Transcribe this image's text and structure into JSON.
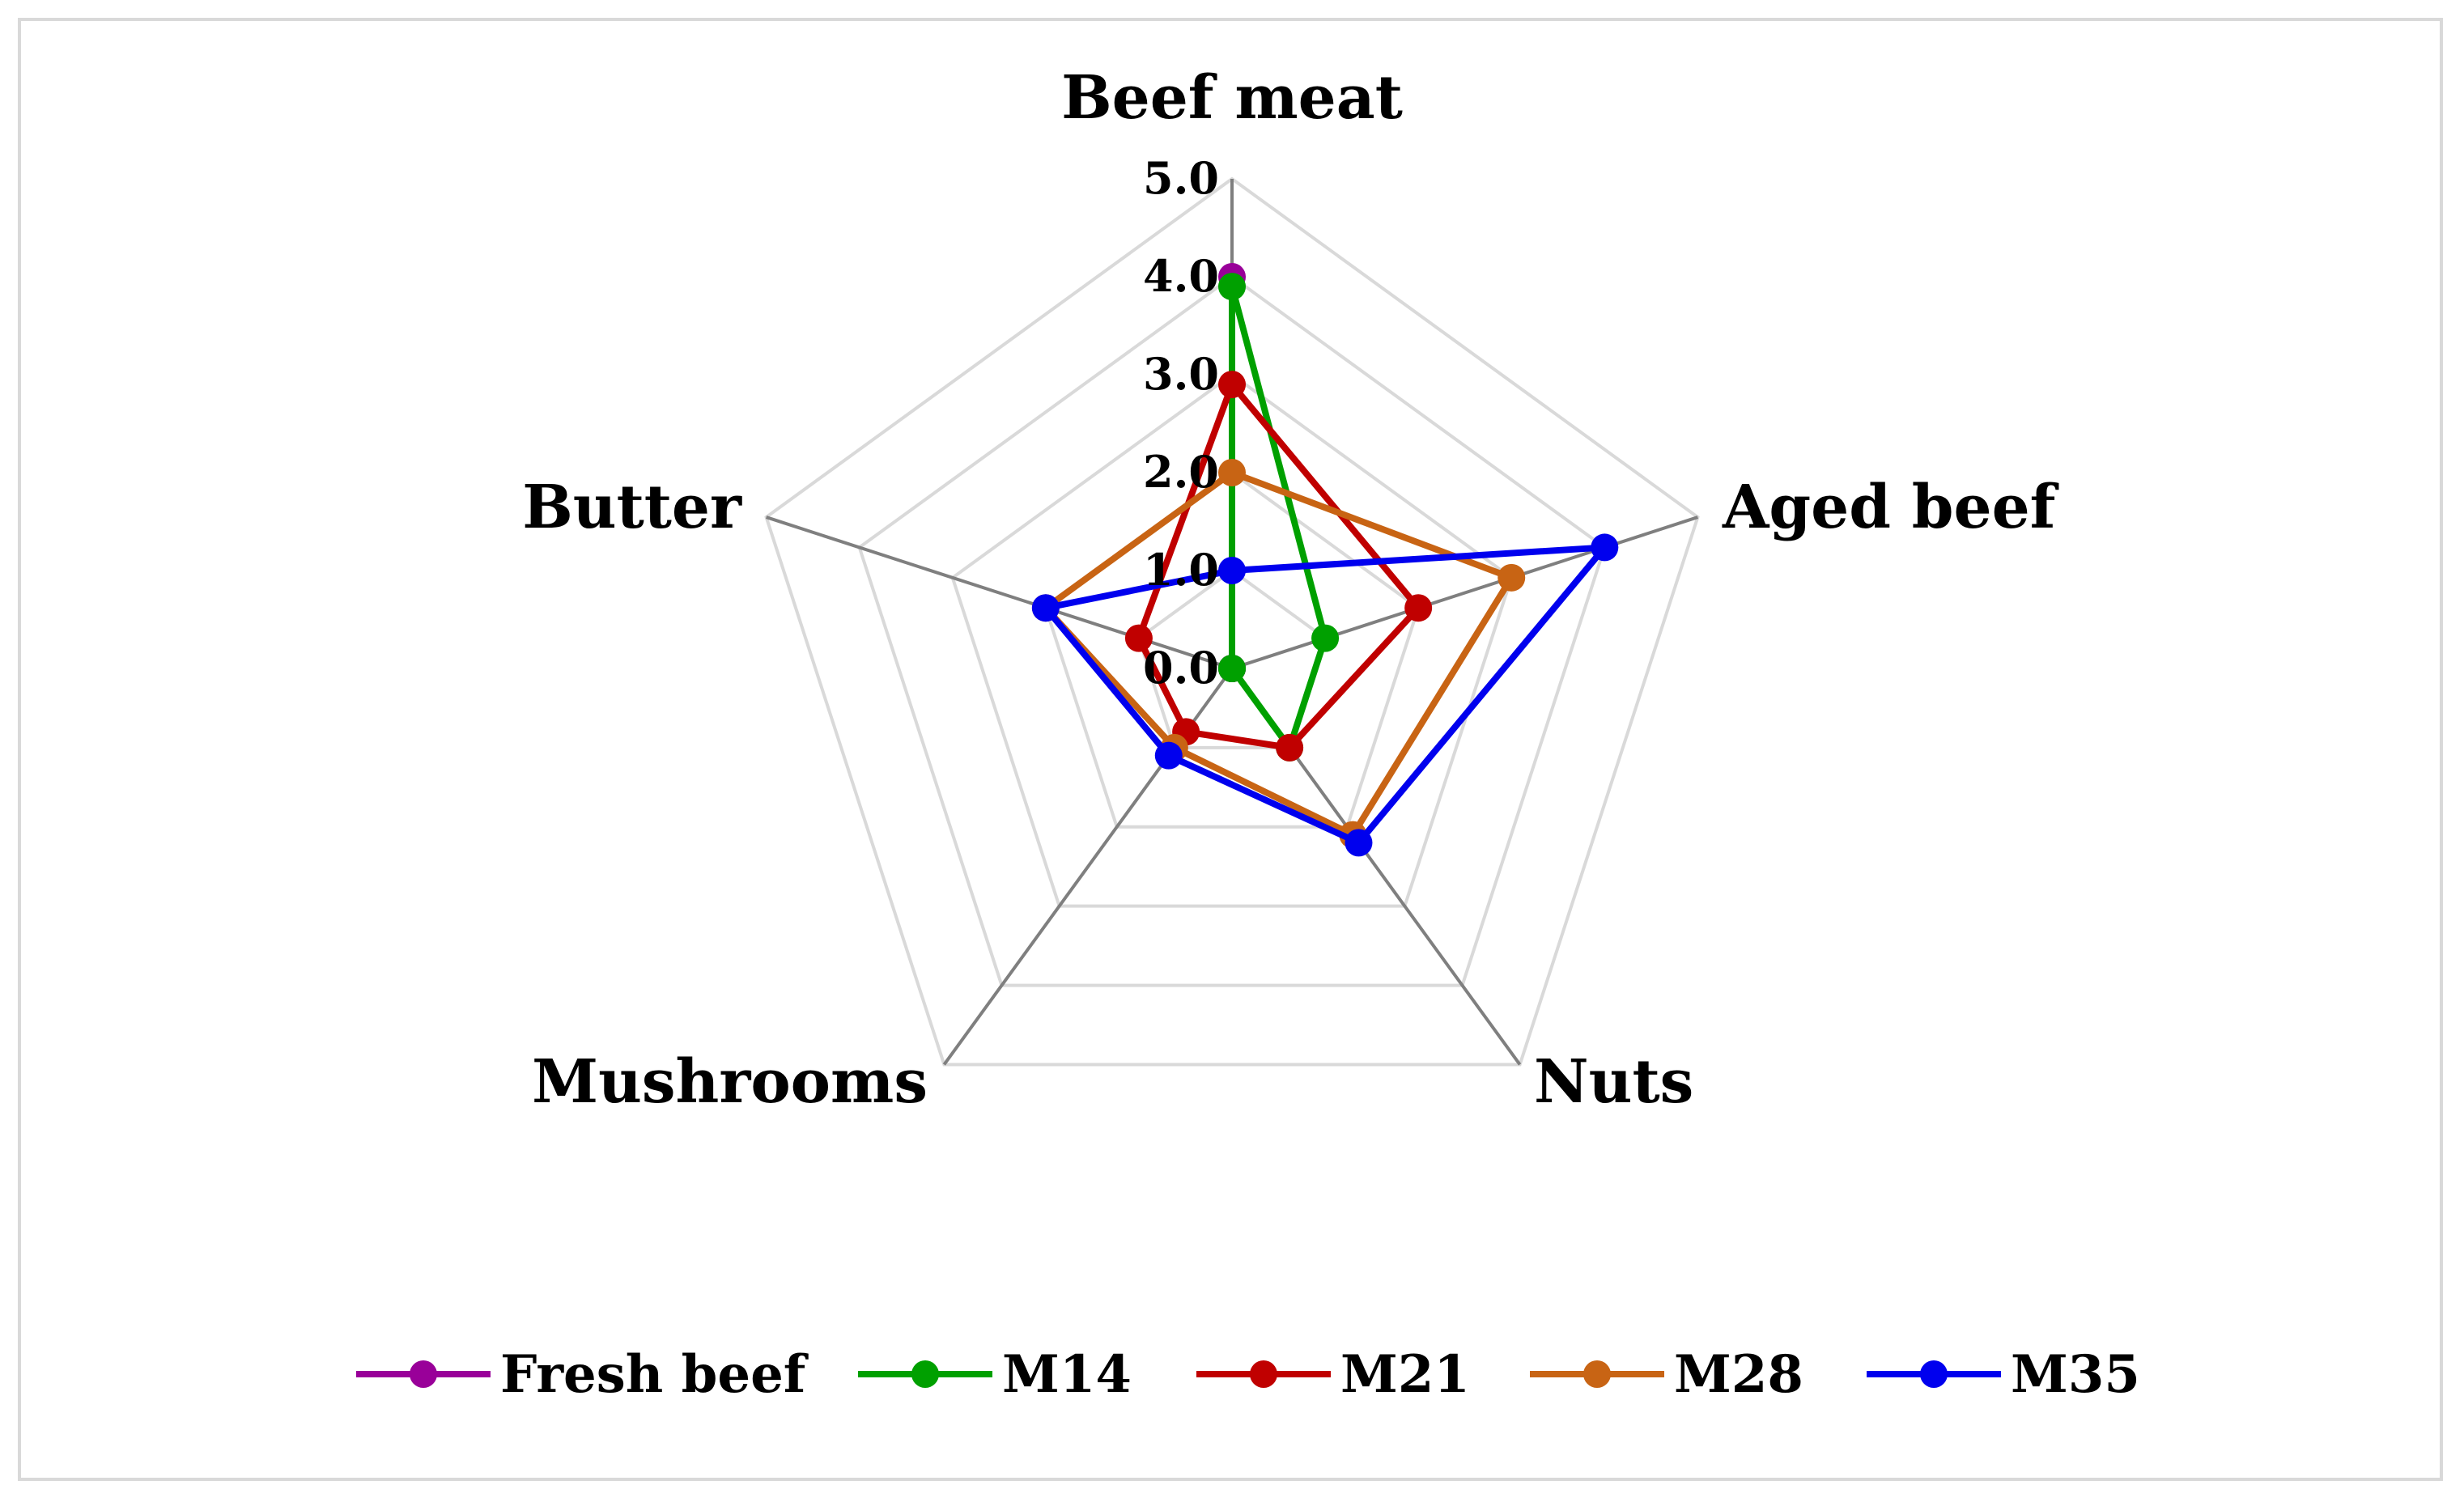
{
  "chart_data": {
    "type": "radar",
    "categories": [
      "Beef meat",
      "Aged beef",
      "Nuts",
      "Mushrooms",
      "Butter"
    ],
    "rlim": [
      0,
      5
    ],
    "ticks": [
      "0.0",
      "1.0",
      "2.0",
      "3.0",
      "4.0",
      "5.0"
    ],
    "grid": true,
    "legend_position": "bottom",
    "series": [
      {
        "name": "Fresh beef",
        "color": "#990099",
        "values": [
          4.0,
          0.0,
          0.0,
          0.0,
          0.0
        ]
      },
      {
        "name": "M14",
        "color": "#00a000",
        "values": [
          3.9,
          1.0,
          1.0,
          0.0,
          0.0
        ]
      },
      {
        "name": "M21",
        "color": "#c00000",
        "values": [
          2.9,
          2.0,
          1.0,
          0.8,
          1.0
        ]
      },
      {
        "name": "M28",
        "color": "#c86414",
        "values": [
          2.0,
          3.0,
          2.1,
          1.0,
          2.0
        ]
      },
      {
        "name": "M35",
        "color": "#0000ee",
        "values": [
          1.0,
          4.0,
          2.2,
          1.1,
          2.0
        ]
      }
    ]
  }
}
